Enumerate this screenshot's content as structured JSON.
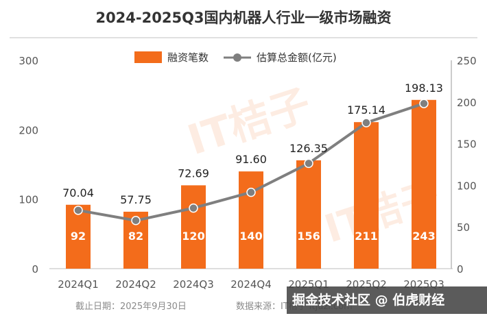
{
  "title": "2024-2025Q3国内机器人行业一级市场融资",
  "legend": {
    "bar_label": "融资笔数",
    "line_label": "估算总金额(亿元)"
  },
  "footer": {
    "date_text": "截止日期：2025年9月30日",
    "source_text": "数据来源：IT桔子 itjuzi.com"
  },
  "watermark": {
    "text": "掘金技术社区 @ 伯虎财经",
    "logo_text": "IT桔子"
  },
  "colors": {
    "bar": "#f36c1b",
    "line": "#7f7f7f",
    "axis_text": "#555555",
    "bar_label": "#ffffff"
  },
  "chart_data": {
    "type": "bar",
    "categories": [
      "2024Q1",
      "2024Q2",
      "2024Q3",
      "2024Q4",
      "2025Q1",
      "2025Q2",
      "2025Q3"
    ],
    "series": [
      {
        "name": "融资笔数",
        "type": "bar",
        "axis": "left",
        "values": [
          92,
          82,
          120,
          140,
          156,
          211,
          243
        ]
      },
      {
        "name": "估算总金额(亿元)",
        "type": "line",
        "axis": "right",
        "values": [
          70.04,
          57.75,
          72.69,
          91.6,
          126.35,
          175.14,
          198.13
        ]
      }
    ],
    "bar_labels": [
      "92",
      "82",
      "120",
      "140",
      "156",
      "211",
      "243"
    ],
    "line_labels": [
      "70.04",
      "57.75",
      "72.69",
      "91.60",
      "126.35",
      "175.14",
      "198.13"
    ],
    "y_left": {
      "lim": [
        0,
        300
      ],
      "ticks": [
        0,
        100,
        200,
        300
      ],
      "tick_labels": [
        "0",
        "100",
        "200",
        "300"
      ]
    },
    "y_right": {
      "lim": [
        0,
        250
      ],
      "ticks": [
        0,
        50,
        100,
        150,
        200,
        250
      ],
      "tick_labels": [
        "0",
        "50",
        "100",
        "150",
        "200",
        "250"
      ]
    },
    "grid": false,
    "legend_position": "top-center"
  }
}
